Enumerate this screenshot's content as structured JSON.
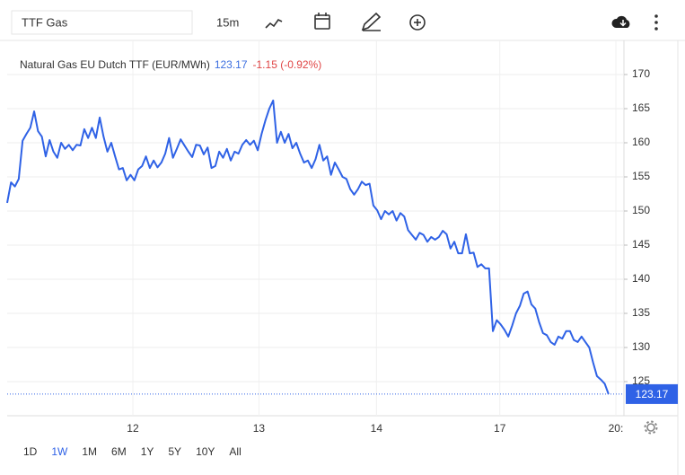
{
  "toolbar": {
    "symbol": "TTF Gas",
    "interval": "15m"
  },
  "ranges": [
    "1D",
    "1W",
    "1M",
    "6M",
    "1Y",
    "5Y",
    "10Y",
    "All"
  ],
  "chart_data": {
    "type": "line",
    "title": "Natural Gas EU Dutch TTF (EUR/MWh)",
    "change": "-1.15 (-0.92%)",
    "color": "#2f62e6",
    "grid": true,
    "ylim": [
      120,
      175
    ],
    "yticks": [
      125,
      130,
      135,
      140,
      145,
      150,
      155,
      160,
      165,
      170
    ],
    "xlim": [
      0,
      160
    ],
    "xticks": [
      {
        "value": 32.6,
        "label": "12"
      },
      {
        "value": 65.3,
        "label": "13"
      },
      {
        "value": 95.8,
        "label": "14"
      },
      {
        "value": 127.8,
        "label": "17"
      },
      {
        "value": 157.9,
        "label": "20:"
      }
    ],
    "values": [
      151.2,
      154.2,
      153.6,
      154.7,
      160.3,
      161.3,
      162.2,
      164.6,
      161.7,
      160.9,
      158.0,
      160.4,
      158.7,
      157.8,
      160.0,
      159.1,
      159.7,
      158.9,
      159.7,
      159.6,
      162.0,
      160.7,
      162.2,
      160.7,
      163.7,
      160.9,
      158.7,
      160.0,
      158.0,
      156.1,
      156.3,
      154.5,
      155.3,
      154.5,
      156.1,
      156.6,
      158.0,
      156.3,
      157.4,
      156.4,
      157.1,
      158.4,
      160.7,
      157.8,
      159.1,
      160.5,
      159.6,
      158.7,
      157.9,
      159.7,
      159.6,
      158.3,
      159.3,
      156.3,
      156.6,
      158.7,
      157.8,
      159.1,
      157.4,
      158.7,
      158.4,
      159.7,
      160.4,
      159.7,
      160.3,
      158.9,
      161.3,
      163.3,
      165.0,
      166.2,
      160.0,
      161.6,
      160.0,
      161.3,
      159.2,
      160.0,
      158.4,
      157.1,
      157.4,
      156.3,
      157.6,
      159.7,
      157.4,
      158.0,
      155.3,
      157.1,
      156.1,
      155.0,
      154.7,
      153.2,
      152.4,
      153.2,
      154.3,
      153.8,
      154.0,
      150.8,
      150.1,
      148.8,
      150.0,
      149.5,
      150.0,
      148.6,
      149.7,
      149.2,
      147.2,
      146.5,
      145.8,
      146.8,
      146.5,
      145.5,
      146.2,
      145.8,
      146.2,
      147.1,
      146.6,
      144.5,
      145.5,
      143.8,
      143.8,
      146.6,
      143.8,
      143.9,
      141.8,
      142.2,
      141.6,
      141.6,
      132.4,
      134.0,
      133.4,
      132.6,
      131.6,
      133.2,
      135.0,
      136.1,
      137.9,
      138.2,
      136.3,
      135.7,
      133.7,
      132.1,
      131.8,
      130.8,
      130.4,
      131.6,
      131.3,
      132.4,
      132.4,
      131.1,
      130.8,
      131.6,
      130.8,
      130.0,
      127.8,
      125.8,
      125.3,
      124.7,
      123.17
    ]
  }
}
